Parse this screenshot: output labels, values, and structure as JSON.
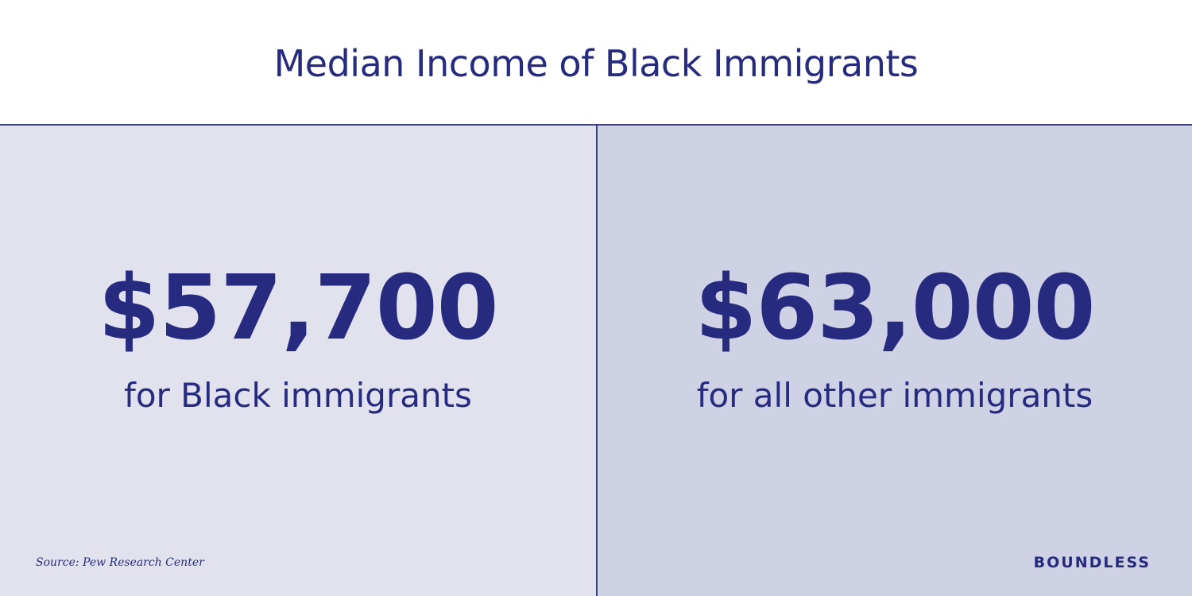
{
  "header": {
    "title": "Median Income of Black Immigrants"
  },
  "panels": [
    {
      "amount": "$57,700",
      "label": "for Black immigrants"
    },
    {
      "amount": "$63,000",
      "label": "for all other immigrants"
    }
  ],
  "footer": {
    "source": "Source: Pew Research Center",
    "brand": "BOUNDLESS"
  }
}
